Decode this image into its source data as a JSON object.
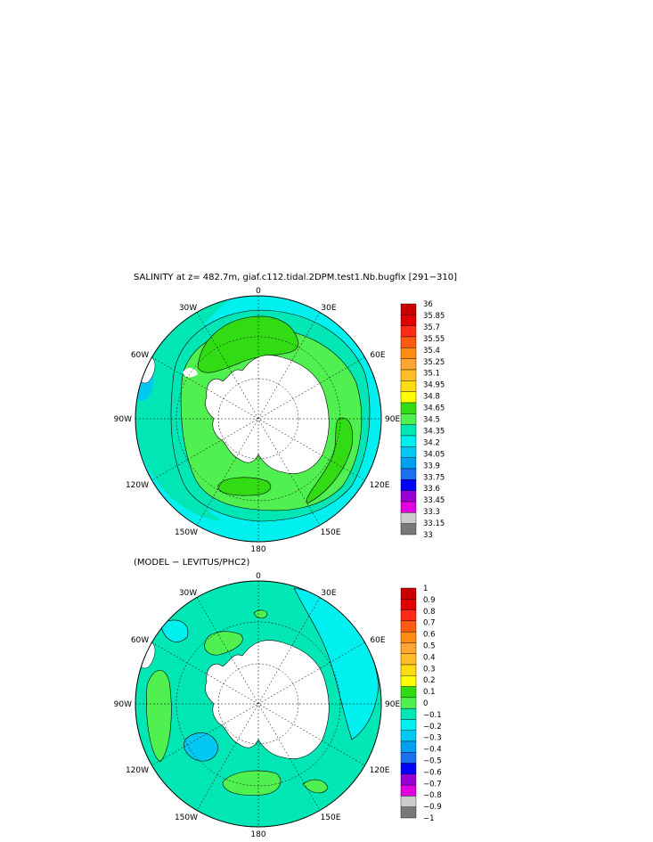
{
  "top_panel": {
    "title": "SALINITY at z= 482.7m, giaf.c112.tidal.2DPM.test1.Nb.bugfix [291−310]",
    "longitude_labels": {
      "n": "0",
      "nne": "30E",
      "ene": "60E",
      "e": "90E",
      "ese": "120E",
      "sse": "150E",
      "s": "180",
      "ssw": "150W",
      "wsw": "120W",
      "w": "90W",
      "wnw": "60W",
      "nnw": "30W"
    },
    "colorbar": {
      "labels": [
        "36",
        "35.85",
        "35.7",
        "35.55",
        "35.4",
        "35.25",
        "35.1",
        "34.95",
        "34.8",
        "34.65",
        "34.5",
        "34.35",
        "34.2",
        "34.05",
        "33.9",
        "33.75",
        "33.6",
        "33.45",
        "33.3",
        "33.15",
        "33"
      ],
      "colors": [
        "#c80000",
        "#e00000",
        "#ff2a1a",
        "#ff5a14",
        "#ff8c14",
        "#ffa532",
        "#ffbe28",
        "#ffdc14",
        "#ffff00",
        "#32dc14",
        "#50f050",
        "#00e6b4",
        "#00f0f0",
        "#00c8f0",
        "#00a0f0",
        "#1e6ef0",
        "#0000ff",
        "#9600d2",
        "#e100e1",
        "#cccccc",
        "#787878"
      ]
    }
  },
  "bottom_panel": {
    "title": "(MODEL − LEVITUS/PHC2)",
    "longitude_labels": {
      "n": "0",
      "nne": "30E",
      "ene": "60E",
      "e": "90E",
      "ese": "120E",
      "sse": "150E",
      "s": "180",
      "ssw": "150W",
      "wsw": "120W",
      "w": "90W",
      "wnw": "60W",
      "nnw": "30W"
    },
    "colorbar": {
      "labels": [
        "1",
        "0.9",
        "0.8",
        "0.7",
        "0.6",
        "0.5",
        "0.4",
        "0.3",
        "0.2",
        "0.1",
        "0",
        "−0.1",
        "−0.2",
        "−0.3",
        "−0.4",
        "−0.5",
        "−0.6",
        "−0.7",
        "−0.8",
        "−0.9",
        "−1"
      ],
      "colors": [
        "#c80000",
        "#e00000",
        "#ff2a1a",
        "#ff5a14",
        "#ff8c14",
        "#ffa532",
        "#ffbe28",
        "#ffdc14",
        "#ffff00",
        "#32dc14",
        "#50f050",
        "#00e6b4",
        "#00f0f0",
        "#00c8f0",
        "#00a0f0",
        "#1e6ef0",
        "#0000ff",
        "#9600d2",
        "#e100e1",
        "#cccccc",
        "#787878"
      ]
    }
  }
}
